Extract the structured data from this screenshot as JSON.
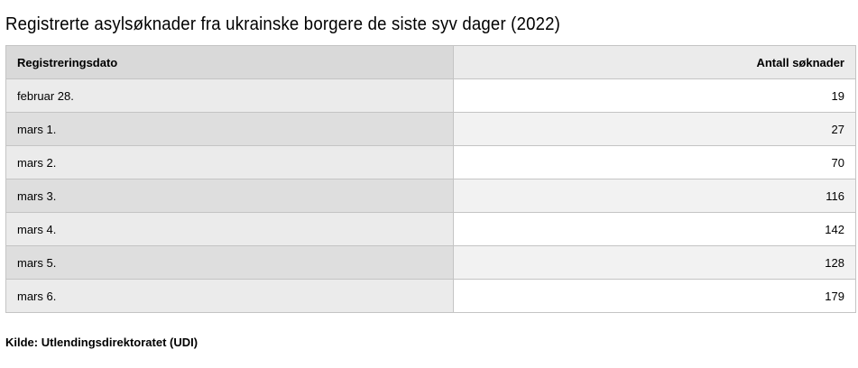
{
  "title": "Registrerte asylsøknader fra ukrainske borgere de siste syv dager (2022)",
  "headers": [
    "Registreringsdato",
    "Antall søknader"
  ],
  "rows": [
    {
      "date": "februar 28.",
      "count": "19"
    },
    {
      "date": "mars 1.",
      "count": "27"
    },
    {
      "date": "mars 2.",
      "count": "70"
    },
    {
      "date": "mars 3.",
      "count": "116"
    },
    {
      "date": "mars 4.",
      "count": "142"
    },
    {
      "date": "mars 5.",
      "count": "128"
    },
    {
      "date": "mars 6.",
      "count": "179"
    }
  ],
  "source": "Kilde: Utlendingsdirektoratet (UDI)"
}
